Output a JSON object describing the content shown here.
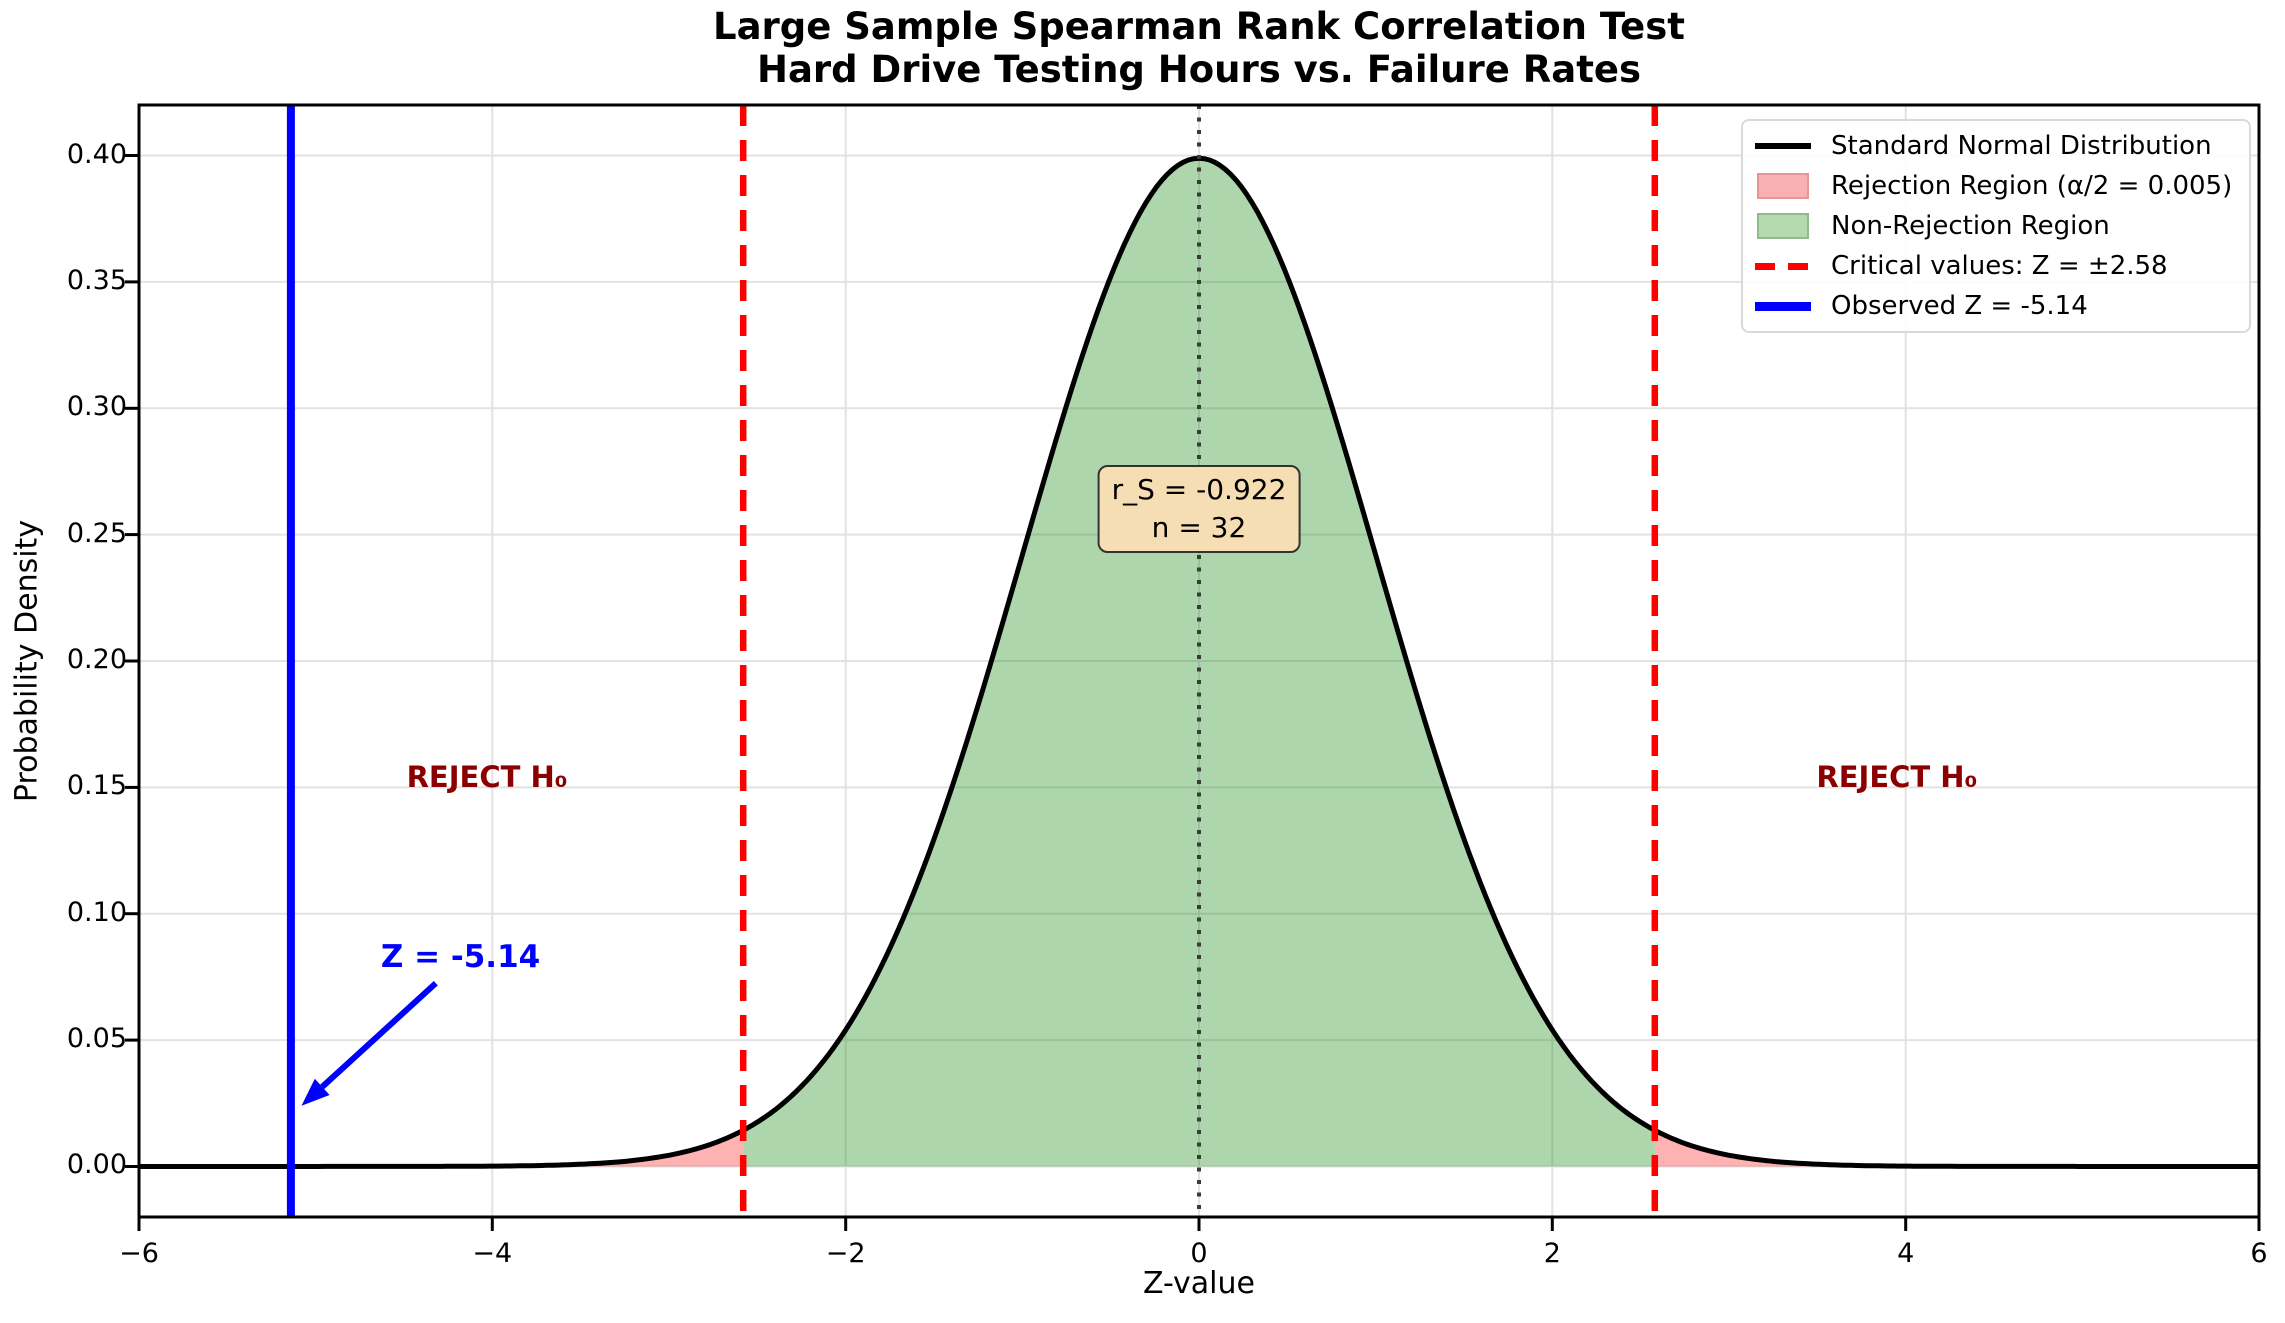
{
  "title": {
    "line1": "Large Sample Spearman Rank Correlation Test",
    "line2": "Hard Drive Testing Hours vs. Failure Rates"
  },
  "axes": {
    "xlabel": "Z-value",
    "ylabel": "Probability Density"
  },
  "legend": {
    "items": [
      {
        "label": "Standard Normal Distribution",
        "swatch": "line",
        "color": "#000000",
        "edge": "#000000"
      },
      {
        "label": "Rejection Region (α/2 = 0.005)",
        "swatch": "patch",
        "color": "#f9b0b0",
        "edge": "#ea9595"
      },
      {
        "label": "Non-Rejection Region",
        "swatch": "patch",
        "color": "#b5d8b0",
        "edge": "#90bb8d"
      },
      {
        "label": "Critical values: Z = ±2.58",
        "swatch": "dashed",
        "color": "#ff0000",
        "edge": "#ff0000"
      },
      {
        "label": "Observed Z = -5.14",
        "swatch": "thickline",
        "color": "#0000ff",
        "edge": "#0000ff"
      }
    ]
  },
  "chart_data": {
    "type": "area",
    "title": "Large Sample Spearman Rank Correlation Test — Hard Drive Testing Hours vs. Failure Rates",
    "xlabel": "Z-value",
    "ylabel": "Probability Density",
    "x_range": [
      -6,
      6
    ],
    "y_range": [
      -0.02,
      0.42
    ],
    "grid": true,
    "legend_position": "upper right",
    "distribution": {
      "name": "standard normal",
      "mean": 0,
      "sd": 1,
      "peak_density": 0.3989
    },
    "critical_values": [
      -2.58,
      2.58
    ],
    "observed_z": -5.14,
    "alpha_over_2": 0.005,
    "r_s": -0.922,
    "n": 32,
    "xticks": {
      "values": [
        -6,
        -4,
        -2,
        0,
        2,
        4,
        6
      ],
      "labels": [
        "−6",
        "−4",
        "−2",
        "0",
        "2",
        "4",
        "6"
      ]
    },
    "yticks": {
      "values": [
        0.0,
        0.05,
        0.1,
        0.15,
        0.2,
        0.25,
        0.3,
        0.35,
        0.4
      ],
      "labels": [
        "0.00",
        "0.05",
        "0.10",
        "0.15",
        "0.20",
        "0.25",
        "0.30",
        "0.35",
        "0.40"
      ]
    },
    "curve_samples": {
      "x": [
        -6,
        -5.5,
        -5,
        -4.5,
        -4,
        -3.5,
        -3,
        -2.5,
        -2,
        -1.5,
        -1,
        -0.5,
        0,
        0.5,
        1,
        1.5,
        2,
        2.5,
        3,
        3.5,
        4,
        4.5,
        5,
        5.5,
        6
      ],
      "pdf": [
        0.0,
        0.0,
        0.0,
        0.0,
        0.0001,
        0.0009,
        0.0044,
        0.0175,
        0.054,
        0.1295,
        0.242,
        0.3521,
        0.3989,
        0.3521,
        0.242,
        0.1295,
        0.054,
        0.0175,
        0.0044,
        0.0009,
        0.0001,
        0.0,
        0.0,
        0.0,
        0.0
      ]
    },
    "colors": {
      "curve": "#000000",
      "rejection_fill": "#ff0000",
      "non_rejection_fill": "#008000",
      "critical_line": "#ff0000",
      "observed_line": "#0000ff",
      "center_dotted_line": "#3a3a3a",
      "reject_text": "#8b0000",
      "stats_box_bg": "#f5deb3",
      "grid": "#e2e2e2"
    },
    "annotations": {
      "observed_label": {
        "text": "Z = -5.14",
        "text_xy": [
          -4.18,
          0.083
        ],
        "arrow_from": [
          -4.32,
          0.0725
        ],
        "arrow_to": [
          -5.08,
          0.024
        ]
      },
      "reject_left": {
        "text": "REJECT H₀",
        "xy": [
          -4.03,
          0.154
        ]
      },
      "reject_right": {
        "text": "REJECT H₀",
        "xy": [
          3.95,
          0.154
        ]
      },
      "stats_box": {
        "line1": "r_S = -0.922",
        "line2": "n = 32",
        "xy": [
          0,
          0.26
        ]
      }
    }
  }
}
